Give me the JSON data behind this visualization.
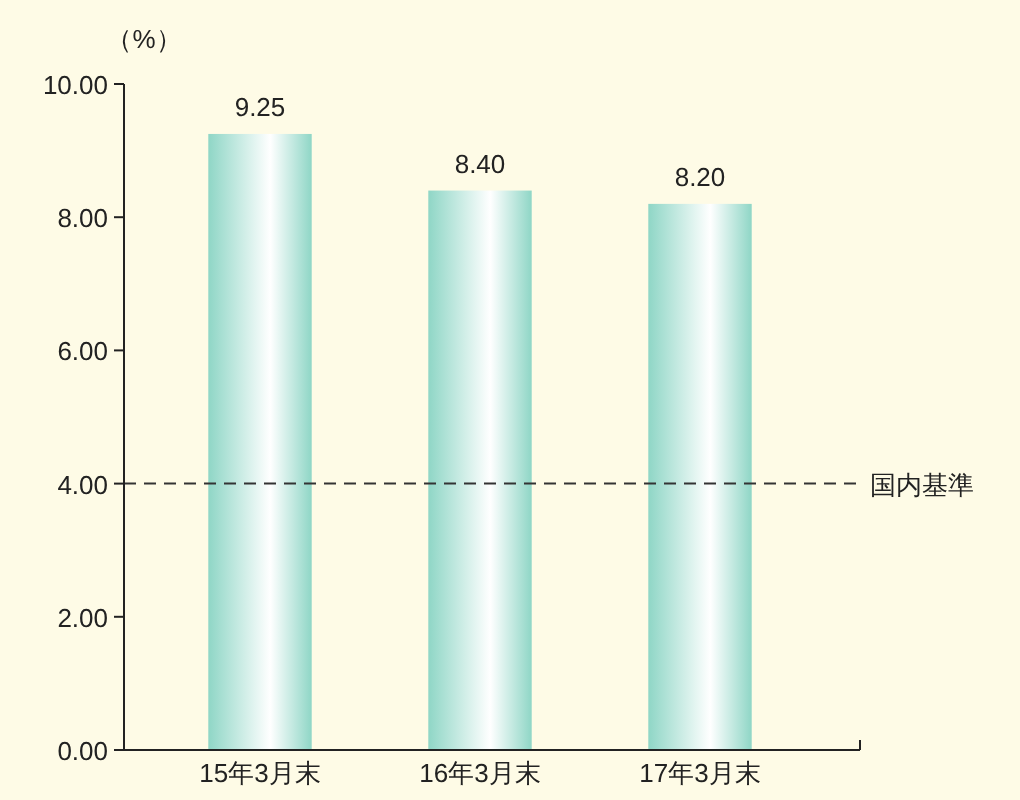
{
  "chart_data": {
    "type": "bar",
    "ylabel": "（%）",
    "categories": [
      "15年3月末",
      "16年3月末",
      "17年3月末"
    ],
    "values": [
      9.25,
      8.4,
      8.2
    ],
    "color": "#8fd6c6",
    "data_labels": true,
    "value_labels": [
      "9.25",
      "8.40",
      "8.20"
    ],
    "ylim": [
      0,
      10
    ],
    "yticks": [
      {
        "value": 0,
        "label": "0.00"
      },
      {
        "value": 2,
        "label": "2.00"
      },
      {
        "value": 4,
        "label": "4.00"
      },
      {
        "value": 6,
        "label": "6.00"
      },
      {
        "value": 8,
        "label": "8.00"
      },
      {
        "value": 10,
        "label": "10.00"
      }
    ],
    "grid": false,
    "ref_lines": [
      {
        "axis": "y",
        "value": 4,
        "label": "国内基準",
        "line_style": "dashed",
        "color": "#333333"
      }
    ]
  }
}
